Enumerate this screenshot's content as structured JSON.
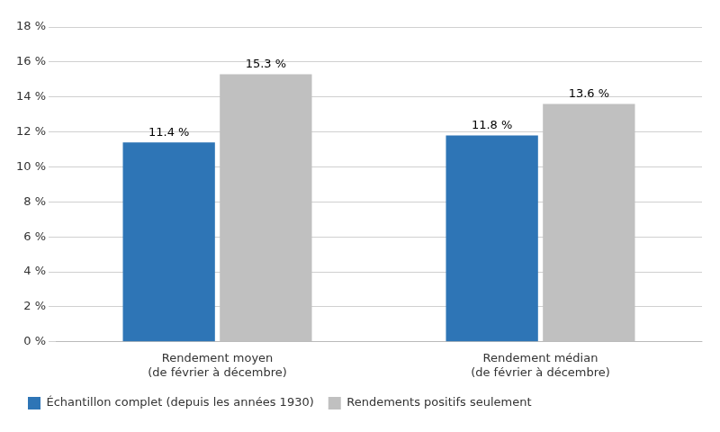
{
  "chart_data": {
    "type": "bar",
    "categories": [
      "Rendement moyen\n(de février à décembre)",
      "Rendement médian\n(de février à décembre)"
    ],
    "series": [
      {
        "name": "Échantillon complet (depuis les années 1930)",
        "color": "#2E75B6",
        "values": [
          11.4,
          11.8
        ],
        "value_labels": [
          "11.4 %",
          "11.8 %"
        ]
      },
      {
        "name": "Rendements positifs seulement",
        "color": "#C0C0C0",
        "values": [
          15.3,
          13.6
        ],
        "value_labels": [
          "15.3 %",
          "13.6 %"
        ]
      }
    ],
    "ylim": [
      0,
      18
    ],
    "yticks": [
      {
        "value": 0,
        "label": "0 %"
      },
      {
        "value": 2,
        "label": "2 %"
      },
      {
        "value": 4,
        "label": "4 %"
      },
      {
        "value": 6,
        "label": "6 %"
      },
      {
        "value": 8,
        "label": "8 %"
      },
      {
        "value": 10,
        "label": "10 %"
      },
      {
        "value": 12,
        "label": "12 %"
      },
      {
        "value": 14,
        "label": "14 %"
      },
      {
        "value": 16,
        "label": "16 %"
      },
      {
        "value": 18,
        "label": "18 %"
      }
    ],
    "grid": "y",
    "legend": "bottom left",
    "data_labels": true
  }
}
